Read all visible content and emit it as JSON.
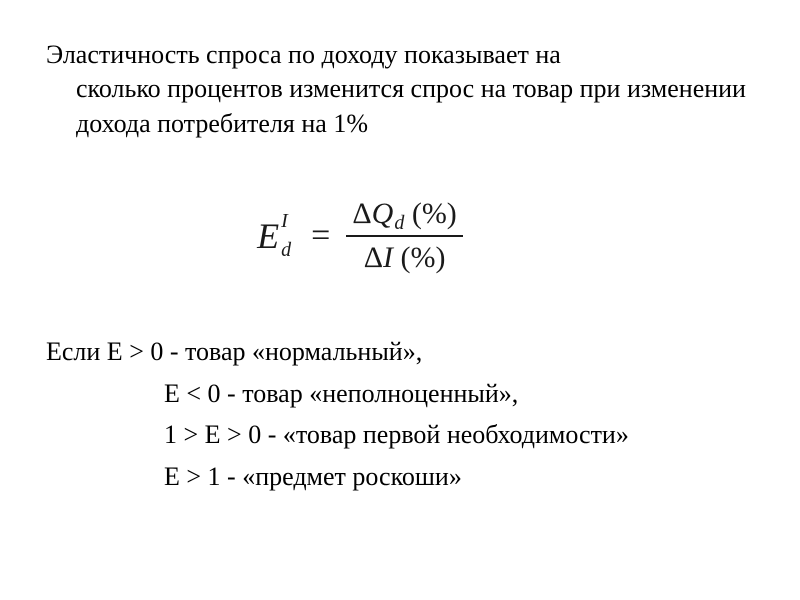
{
  "colors": {
    "background": "#ffffff",
    "text": "#000000",
    "formula": "#1a1a1a"
  },
  "typography": {
    "body_family": "Times New Roman",
    "body_size_pt": 20,
    "formula_size_pt": 26
  },
  "intro": {
    "line1": "Эластичность спроса по доходу показывает на",
    "rest": "сколько процентов изменится спрос на товар при изменении дохода потребителя на 1%"
  },
  "formula": {
    "E": "E",
    "sup": "I",
    "sub": "d",
    "eq": "=",
    "num_delta": "Δ",
    "num_Q": "Q",
    "num_Q_sub": "d",
    "num_pct": "(%)",
    "den_delta": "Δ",
    "den_I": "I",
    "den_pct": "(%)"
  },
  "classifications": {
    "line1": "Если E > 0 - товар «нормальный»,",
    "line2": "E < 0 - товар «неполноценный»,",
    "line3": "1 > E > 0 - «товар первой необходимости»",
    "line4": "E > 1 - «предмет роскоши»"
  }
}
